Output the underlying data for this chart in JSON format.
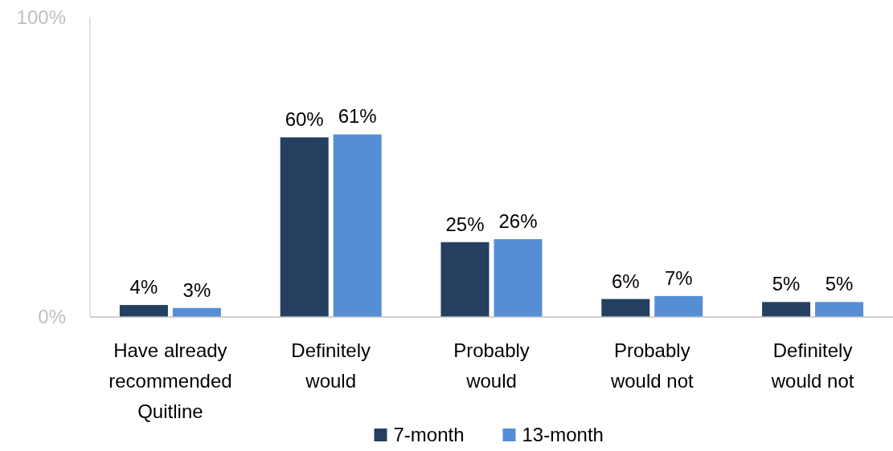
{
  "chart_data": {
    "type": "bar",
    "categories": [
      "Have already recommended Quitline",
      "Definitely would",
      "Probably would",
      "Probably would not",
      "Definitely would not"
    ],
    "series": [
      {
        "name": "7-month",
        "color": "#243f60",
        "values": [
          4,
          60,
          25,
          6,
          5
        ],
        "value_labels": [
          "4%",
          "60%",
          "25%",
          "6%",
          "5%"
        ]
      },
      {
        "name": "13-month",
        "color": "#558ed5",
        "values": [
          3,
          61,
          26,
          7,
          5
        ],
        "value_labels": [
          "3%",
          "61%",
          "26%",
          "7%",
          "5%"
        ]
      }
    ],
    "ylim": [
      0,
      100
    ],
    "yticks": [
      {
        "value": 0,
        "label": "0%"
      },
      {
        "value": 100,
        "label": "100%"
      }
    ],
    "grid": false,
    "legend": "bottom"
  }
}
